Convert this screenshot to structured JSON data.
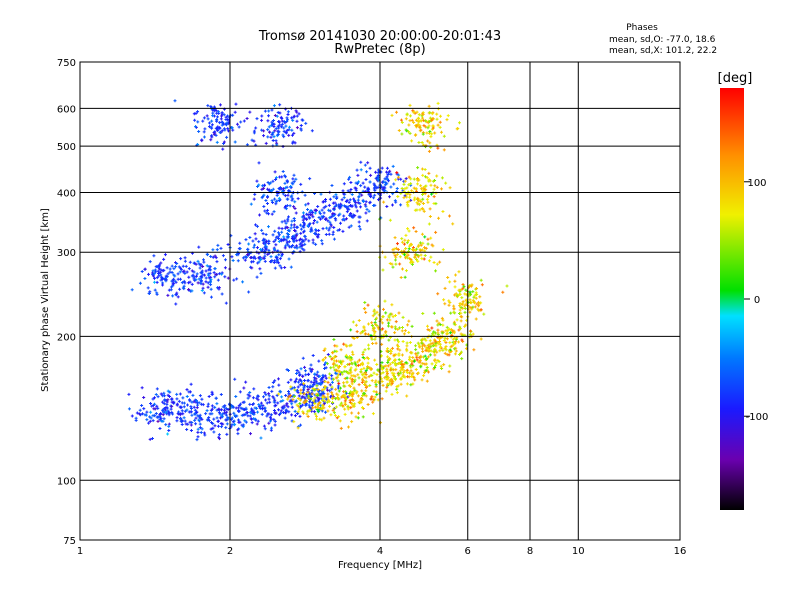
{
  "chart_data": {
    "type": "scatter",
    "title": "Tromsø 20141030 20:00:00-20:01:43",
    "subtitle": "RwPretec (8p)",
    "xlabel": "Frequency [MHz]",
    "ylabel": "Stationary phase Virtual Height [km]",
    "xscale": "log",
    "yscale": "log",
    "xlim": [
      1,
      16
    ],
    "ylim": [
      75,
      750
    ],
    "xticks": [
      1,
      2,
      4,
      6,
      8,
      10,
      16
    ],
    "yticks": [
      75,
      100,
      200,
      300,
      400,
      500,
      600,
      750
    ],
    "grid": true,
    "phase_stats": {
      "heading": "Phases",
      "line_O": "mean, sd,O: -77.0, 18.6",
      "line_X": "mean, sd,X: 101.2, 22.2"
    },
    "colorbar": {
      "label": "[deg]",
      "range": [
        -180,
        180
      ],
      "ticks": [
        100,
        0,
        -100
      ],
      "colormap": [
        "#000000",
        "#6a00b0",
        "#1a1aff",
        "#0078ff",
        "#00e0ff",
        "#00e000",
        "#f0f000",
        "#ff9000",
        "#ff0000"
      ]
    },
    "series": [
      {
        "mode": "O",
        "phase_mean": -77.0,
        "phase_sd": 18.6,
        "points": [
          {
            "f": 1.45,
            "h": 140
          },
          {
            "f": 1.7,
            "h": 138
          },
          {
            "f": 2.0,
            "h": 136
          },
          {
            "f": 2.4,
            "h": 142
          },
          {
            "f": 2.8,
            "h": 150
          },
          {
            "f": 3.0,
            "h": 160
          },
          {
            "f": 1.5,
            "h": 265
          },
          {
            "f": 1.8,
            "h": 270
          },
          {
            "f": 2.3,
            "h": 300
          },
          {
            "f": 2.6,
            "h": 320
          },
          {
            "f": 3.0,
            "h": 350
          },
          {
            "f": 3.5,
            "h": 380
          },
          {
            "f": 4.0,
            "h": 420
          },
          {
            "f": 2.5,
            "h": 400
          },
          {
            "f": 2.5,
            "h": 550
          },
          {
            "f": 1.9,
            "h": 560
          }
        ]
      },
      {
        "mode": "X",
        "phase_mean": 101.2,
        "phase_sd": 22.2,
        "points": [
          {
            "f": 3.0,
            "h": 145
          },
          {
            "f": 3.5,
            "h": 150
          },
          {
            "f": 4.0,
            "h": 165
          },
          {
            "f": 4.5,
            "h": 175
          },
          {
            "f": 5.0,
            "h": 185
          },
          {
            "f": 5.5,
            "h": 200
          },
          {
            "f": 5.9,
            "h": 240
          },
          {
            "f": 4.6,
            "h": 300
          },
          {
            "f": 4.8,
            "h": 400
          },
          {
            "f": 4.9,
            "h": 550
          },
          {
            "f": 4.0,
            "h": 210
          },
          {
            "f": 3.4,
            "h": 175
          }
        ]
      }
    ]
  }
}
